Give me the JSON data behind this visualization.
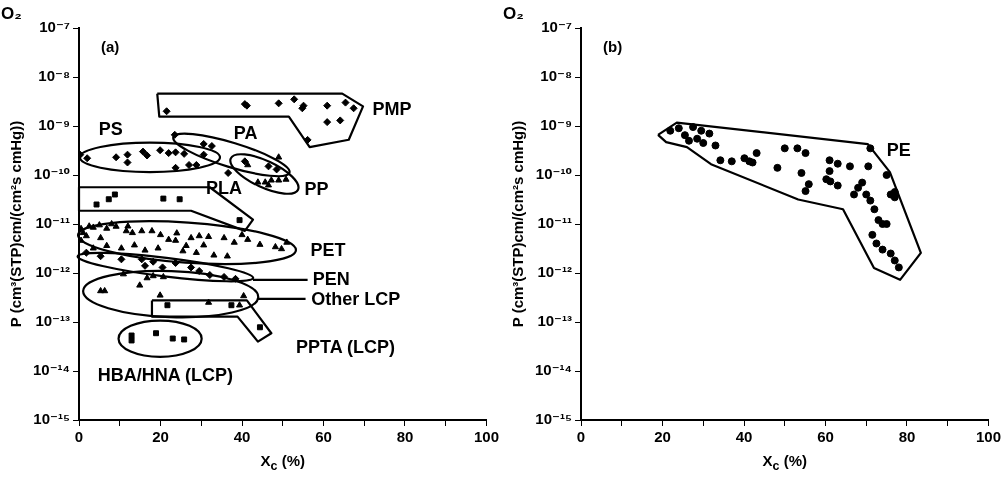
{
  "chart_data": [
    {
      "type": "scatter",
      "title": "O₂",
      "xlabel": "X$_{c}$ (%)",
      "ylabel": "P (cm³(STP)cm/(cm²s cmHg))",
      "xlim": [
        0,
        100
      ],
      "xticks": [
        0,
        {
          "value": 10,
          "label": null
        },
        20,
        {
          "value": 30,
          "label": null
        },
        40,
        {
          "value": 50,
          "label": null
        },
        60,
        {
          "value": 70,
          "label": null
        },
        80,
        {
          "value": 90,
          "label": null
        },
        100
      ],
      "ylim": [
        1e-15,
        1e-07
      ],
      "yticks": [
        {
          "value": 1e-15,
          "label": "10⁻¹⁵"
        },
        {
          "value": 1e-14,
          "label": "10⁻¹⁴"
        },
        {
          "value": 1e-13,
          "label": "10⁻¹³"
        },
        {
          "value": 1e-12,
          "label": "10⁻¹²"
        },
        {
          "value": 1e-11,
          "label": "10⁻¹¹"
        },
        {
          "value": 1e-10,
          "label": "10⁻¹⁰"
        },
        {
          "value": 1e-09,
          "label": "10⁻⁹"
        },
        {
          "value": 1e-08,
          "label": "10⁻⁸"
        },
        {
          "value": 1e-07,
          "label": "10⁻⁷"
        }
      ],
      "log": "y",
      "grid": false,
      "legend": false,
      "series": [
        {
          "color": "#000000",
          "marker": "diamond",
          "x": [
            21.5,
            40.7,
            41.2,
            49.0,
            52.8,
            55.1,
            54.8,
            60.9,
            60.9,
            56.1,
            65.4,
            67.4,
            64.1,
            0.3,
            2.0,
            9.1,
            11.9,
            11.9,
            15.7,
            16.7,
            19.9,
            22.0,
            23.7,
            25.8,
            23.7,
            27.0,
            28.8,
            30.6,
            30.6,
            32.6,
            23.5,
            36.6,
            40.7,
            46.5,
            48.5,
            1.8,
            5.3,
            10.4,
            15.4,
            16.2,
            18.2,
            20.5,
            23.7,
            27.5,
            29.5,
            32.1,
            35.6,
            38.4
          ],
          "values": [
            2e-09,
            2.8e-09,
            2.6e-09,
            2.9e-09,
            3.5e-09,
            2.6e-09,
            2.3e-09,
            2.6e-09,
            1.2e-09,
            5.2e-10,
            3e-09,
            2.3e-09,
            1.3e-09,
            2.6e-10,
            2.2e-10,
            2.3e-10,
            2.6e-10,
            1.8e-10,
            3e-10,
            2.5e-10,
            3.2e-10,
            2.8e-10,
            2.9e-10,
            2.7e-10,
            1.4e-10,
            1.6e-10,
            1.6e-10,
            2.6e-10,
            4.3e-10,
            3.9e-10,
            6.6e-10,
            1.1e-10,
            1.9e-10,
            1.5e-10,
            1.3e-10,
            2.6e-12,
            2.2e-12,
            1.9e-12,
            1.9e-12,
            1.4e-12,
            1.7e-12,
            1.3e-12,
            1.6e-12,
            1.3e-12,
            1.1e-12,
            9.1e-13,
            8.3e-13,
            7.6e-13
          ]
        },
        {
          "color": "#000000",
          "marker": "triangle",
          "x": [
            49.0,
            41.4,
            43.9,
            45.7,
            47.2,
            49.0,
            50.8,
            46.5
          ],
          "values": [
            2.3e-10,
            1.6e-10,
            7.1e-11,
            7.1e-11,
            7.8e-11,
            7.8e-11,
            8.1e-11,
            6.2e-11
          ]
        },
        {
          "color": "#000000",
          "marker": "square",
          "x": [
            4.3,
            7.3,
            8.8,
            20.7,
            24.7,
            39.4
          ],
          "values": [
            2.5e-11,
            3.2e-11,
            4e-11,
            3.3e-11,
            3.2e-11,
            1.2e-11
          ]
        },
        {
          "color": "#000000",
          "marker": "triangle",
          "x": [
            1,
            3.5,
            6.8,
            9.1,
            11.6,
            13.1,
            15.4,
            17.9,
            22.0,
            23.7,
            27.5,
            29.5,
            31.8,
            35.6,
            38.1,
            41.4,
            44.4,
            48.2,
            49.7,
            3.5,
            6.8,
            10.4,
            13.6,
            16.2,
            19.4,
            25.5,
            28.8,
            33.1,
            36.4,
            26.3,
            30.6,
            0.5,
            1.8,
            5.3,
            0.5,
            2.5,
            5,
            8,
            12,
            20,
            24,
            40,
            51
          ],
          "values": [
            6.6e-12,
            8.5e-12,
            8.1e-12,
            8.9e-12,
            7.2e-12,
            6.6e-12,
            7.2e-12,
            7.2e-12,
            4.8e-12,
            4.6e-12,
            5.2e-12,
            5.7e-12,
            5.5e-12,
            5.2e-12,
            4.2e-12,
            4.8e-12,
            3.8e-12,
            3.4e-12,
            3.1e-12,
            3.2e-12,
            3.6e-12,
            3.2e-12,
            3.7e-12,
            2.9e-12,
            3.2e-12,
            2.8e-12,
            2.6e-12,
            2.3e-12,
            2.2e-12,
            3.6e-12,
            3.7e-12,
            4.6e-12,
            5.7e-12,
            5.2e-12,
            8e-12,
            9e-12,
            9.5e-12,
            1e-11,
            9e-12,
            6e-12,
            6.5e-12,
            6e-12,
            4.2e-12
          ]
        },
        {
          "color": "#000000",
          "marker": "triangle",
          "x": [
            5.3,
            6.3,
            10.9,
            14.9,
            16.7,
            19.9,
            31.8,
            40.4,
            39.4,
            18.2,
            20.7
          ],
          "values": [
            4.3e-13,
            4.3e-13,
            9.5e-13,
            5.6e-13,
            7.9e-13,
            3.5e-13,
            2.5e-13,
            3.4e-13,
            2.2e-13,
            8.7e-13,
            8.3e-13
          ]
        },
        {
          "color": "#000000",
          "marker": "square",
          "x": [
            21.7,
            37.4,
            44.4,
            12.9,
            12.9,
            18.9,
            23.0,
            25.8
          ],
          "values": [
            2.2e-13,
            2.2e-13,
            7.8e-14,
            5.3e-14,
            4.2e-14,
            5.9e-14,
            4.6e-14,
            4.4e-14
          ]
        }
      ],
      "annotations": [
        "(a)",
        "PMP",
        "PS",
        "PA",
        "PLA",
        "PP",
        "PET",
        "PEN",
        "Other LCP",
        "PPTA (LCP)",
        "HBA/HNA (LCP)"
      ]
    },
    {
      "type": "scatter",
      "title": "O₂",
      "xlabel": "X$_{c}$ (%)",
      "ylabel": "P (cm³(STP)cm/(cm²s cmHg))",
      "xlim": [
        0,
        100
      ],
      "xticks": [
        0,
        {
          "value": 10,
          "label": null
        },
        20,
        {
          "value": 30,
          "label": null
        },
        40,
        {
          "value": 50,
          "label": null
        },
        60,
        {
          "value": 70,
          "label": null
        },
        80,
        {
          "value": 90,
          "label": null
        },
        100
      ],
      "ylim": [
        1e-15,
        1e-07
      ],
      "yticks": [
        {
          "value": 1e-15,
          "label": "10⁻¹⁵"
        },
        {
          "value": 1e-14,
          "label": "10⁻¹⁴"
        },
        {
          "value": 1e-13,
          "label": "10⁻¹³"
        },
        {
          "value": 1e-12,
          "label": "10⁻¹²"
        },
        {
          "value": 1e-11,
          "label": "10⁻¹¹"
        },
        {
          "value": 1e-10,
          "label": "10⁻¹⁰"
        },
        {
          "value": 1e-09,
          "label": "10⁻⁹"
        },
        {
          "value": 1e-08,
          "label": "10⁻⁸"
        },
        {
          "value": 1e-07,
          "label": "10⁻⁷"
        }
      ],
      "log": "y",
      "grid": false,
      "legend": false,
      "series": [
        {
          "color": "#000000",
          "marker": "circle",
          "x": [
            21.9,
            24,
            25.5,
            27.5,
            28.5,
            29.5,
            30,
            31.5,
            26.5,
            33,
            34.2,
            37.0,
            40.1,
            41.3,
            42.1,
            43.1,
            48.2,
            50.0,
            53.1,
            55.1,
            54.1,
            55.9,
            55.1,
            61.0,
            61.0,
            60.2,
            61.2,
            63.0,
            63.0,
            66,
            67,
            68,
            69,
            70.5,
            71,
            70,
            71,
            72,
            73,
            74,
            75,
            71.5,
            72.5,
            74,
            76,
            77,
            78,
            76,
            77,
            77,
            75
          ],
          "values": [
            8e-10,
            9e-10,
            6.5e-10,
            9.5e-10,
            5.5e-10,
            8e-10,
            4.5e-10,
            7e-10,
            5e-10,
            4e-10,
            2e-10,
            1.9e-10,
            2.2e-10,
            1.9e-10,
            1.8e-10,
            2.8e-10,
            1.4e-10,
            3.5e-10,
            3.5e-10,
            2.8e-10,
            1.1e-10,
            6.5e-11,
            4.7e-11,
            2e-10,
            1.2e-10,
            8.2e-11,
            7.4e-11,
            1.7e-10,
            6.1e-11,
            1.5e-10,
            4e-11,
            5.5e-11,
            7e-11,
            1.5e-10,
            3.5e-10,
            4e-11,
            3e-11,
            2e-11,
            1.2e-11,
            1e-11,
            1e-11,
            6e-12,
            4e-12,
            3e-12,
            2.5e-12,
            1.8e-12,
            1.3e-12,
            4e-11,
            3.5e-11,
            4.5e-11,
            1e-10
          ]
        }
      ],
      "annotations": [
        "(b)",
        "PE"
      ]
    }
  ]
}
